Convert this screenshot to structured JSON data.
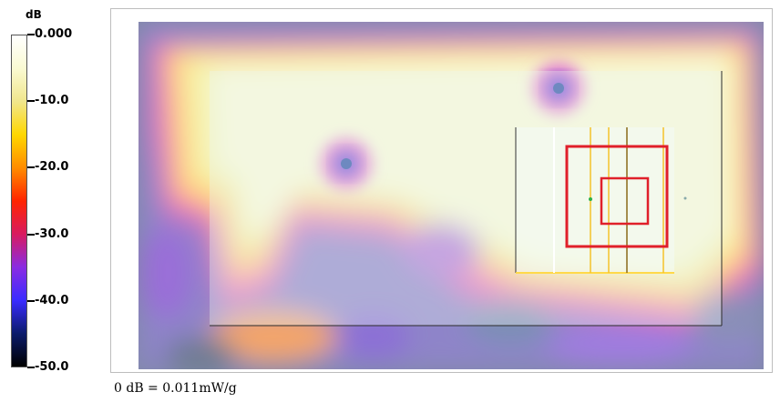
{
  "chart_data": {
    "type": "heatmap",
    "colorbar": {
      "unit": "dB",
      "range": [
        -50,
        0
      ],
      "ticks": [
        {
          "value": 0,
          "label": "0.000"
        },
        {
          "value": -10,
          "label": "-10.0"
        },
        {
          "value": -20,
          "label": "-20.0"
        },
        {
          "value": -30,
          "label": "-30.0"
        },
        {
          "value": -40,
          "label": "-40.0"
        },
        {
          "value": -50,
          "label": "-50.0"
        }
      ],
      "colors": [
        "#ffffff",
        "#fafad2",
        "#f0e68c",
        "#ffd700",
        "#ff8c00",
        "#ff2400",
        "#d81b60",
        "#8a2be2",
        "#3a2bff",
        "#0b1b6b",
        "#000000"
      ]
    },
    "reference_note": "0 dB = 0.011mW/g"
  }
}
